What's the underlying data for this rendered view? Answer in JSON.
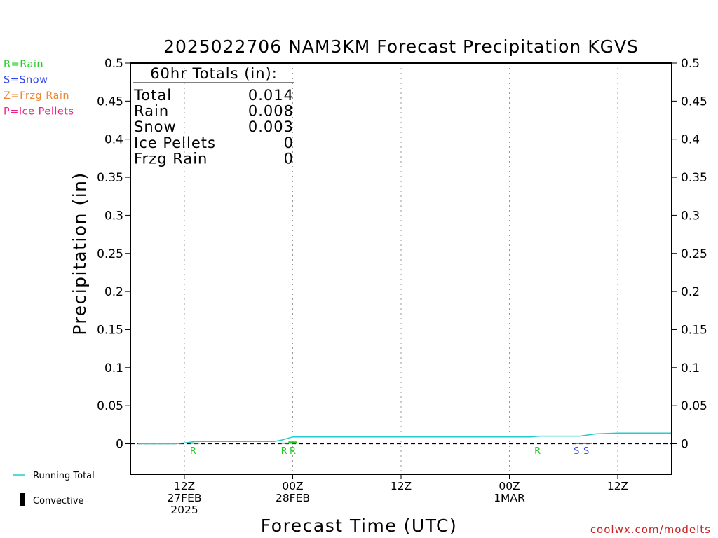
{
  "chart_data": {
    "type": "line",
    "title": "2025022706 NAM3KM Forecast Precipitation KGVS",
    "xlabel": "Forecast Time (UTC)",
    "ylabel": "Precipitation (in)",
    "ylim": [
      0,
      0.5
    ],
    "yticks": [
      "0",
      "0.05",
      "0.1",
      "0.15",
      "0.2",
      "0.25",
      "0.3",
      "0.35",
      "0.4",
      "0.45",
      "0.5"
    ],
    "xlim_hours": [
      -5,
      45
    ],
    "xticks": [
      {
        "hour": 0,
        "lines": [
          "12Z",
          "27FEB",
          "2025"
        ]
      },
      {
        "hour": 10,
        "lines": [
          "00Z",
          "28FEB"
        ]
      },
      {
        "hour": 20,
        "lines": [
          "12Z"
        ]
      },
      {
        "hour": 30,
        "lines": [
          "00Z",
          "1MAR"
        ]
      },
      {
        "hour": 40,
        "lines": [
          "12Z"
        ]
      }
    ],
    "grid": "vertical dotted at ticks",
    "precip_legend": [
      {
        "label": "R=Rain",
        "color": "#22cc22"
      },
      {
        "label": "S=Snow",
        "color": "#3344ee"
      },
      {
        "label": "Z=Frzg Rain",
        "color": "#ee8833"
      },
      {
        "label": "P=Ice Pellets",
        "color": "#ee2288"
      }
    ],
    "bottom_legend": {
      "running_total_label": "Running Total",
      "convective_label": "Convective"
    },
    "totals": {
      "heading": "60hr Totals (in):",
      "rows": [
        {
          "label": "Total",
          "value": "0.014"
        },
        {
          "label": "Rain",
          "value": "0.008"
        },
        {
          "label": "Snow",
          "value": "0.003"
        },
        {
          "label": "Ice Pellets",
          "value": "0"
        },
        {
          "label": "Frzg Rain",
          "value": "0"
        }
      ]
    },
    "running_total": {
      "color": "#22cccc",
      "points": [
        [
          -4.3,
          0.0
        ],
        [
          -1.0,
          0.0
        ],
        [
          0.0,
          0.001
        ],
        [
          1.0,
          0.003
        ],
        [
          2.0,
          0.003
        ],
        [
          8.3,
          0.003
        ],
        [
          9.0,
          0.005
        ],
        [
          10.0,
          0.009
        ],
        [
          12.0,
          0.009
        ],
        [
          32.0,
          0.009
        ],
        [
          32.8,
          0.01
        ],
        [
          35.0,
          0.01
        ],
        [
          36.5,
          0.01
        ],
        [
          38.0,
          0.013
        ],
        [
          40.0,
          0.014
        ],
        [
          45.0,
          0.014
        ]
      ]
    },
    "precip_bars": [
      {
        "hour_start": 0.5,
        "hour_end": 1.4,
        "value": 0.0015,
        "color": "#22cc22"
      },
      {
        "hour_start": 8.9,
        "hour_end": 9.6,
        "value": 0.0015,
        "color": "#22cc22"
      },
      {
        "hour_start": 9.6,
        "hour_end": 10.4,
        "value": 0.003,
        "color": "#22cc22"
      },
      {
        "hour_start": 35.9,
        "hour_end": 37.6,
        "value": 0.0012,
        "color": "#3344ee"
      }
    ],
    "type_markers": [
      {
        "hour": 0.8,
        "label": "R",
        "color": "#22cc22"
      },
      {
        "hour": 9.2,
        "label": "R",
        "color": "#22cc22"
      },
      {
        "hour": 10.0,
        "label": "R",
        "color": "#22cc22"
      },
      {
        "hour": 32.6,
        "label": "R",
        "color": "#22cc22"
      },
      {
        "hour": 36.2,
        "label": "S",
        "color": "#3344ee"
      },
      {
        "hour": 37.1,
        "label": "S",
        "color": "#3344ee"
      }
    ]
  },
  "credit": "coolwx.com/modelts"
}
